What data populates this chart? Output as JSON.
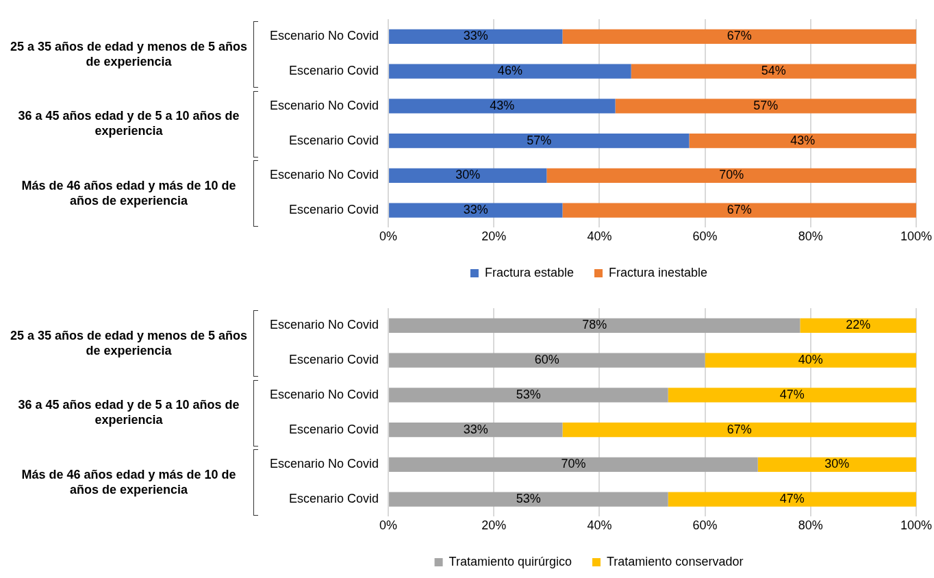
{
  "chart_data": [
    {
      "type": "bar",
      "orientation": "horizontal",
      "stacked": true,
      "categories": [
        "Escenario No Covid",
        "Escenario Covid",
        "Escenario No Covid",
        "Escenario Covid",
        "Escenario No Covid",
        "Escenario Covid"
      ],
      "annotations": [
        "25 a 35 años de edad y menos de 5 años de experiencia",
        "36 a 45 años edad y de 5 a 10 años de experiencia",
        "Más de 46 años edad y más de 10 de años de experiencia"
      ],
      "series": [
        {
          "name": "Fractura estable",
          "color": "#4472c4",
          "values": [
            33,
            46,
            43,
            57,
            30,
            33
          ],
          "value_labels": [
            "33%",
            "46%",
            "43%",
            "57%",
            "30%",
            "33%"
          ]
        },
        {
          "name": "Fractura inestable",
          "color": "#ed7d31",
          "values": [
            67,
            54,
            57,
            43,
            70,
            67
          ],
          "value_labels": [
            "67%",
            "54%",
            "57%",
            "43%",
            "70%",
            "67%"
          ]
        }
      ],
      "xlim": [
        0,
        100
      ],
      "xticks": [
        {
          "value": 0,
          "label": "0%"
        },
        {
          "value": 20,
          "label": "20%"
        },
        {
          "value": 40,
          "label": "40%"
        },
        {
          "value": 60,
          "label": "60%"
        },
        {
          "value": 80,
          "label": "80%"
        },
        {
          "value": 100,
          "label": "100%"
        }
      ],
      "grid": "x",
      "legend": "bottom"
    },
    {
      "type": "bar",
      "orientation": "horizontal",
      "stacked": true,
      "categories": [
        "Escenario No Covid",
        "Escenario Covid",
        "Escenario No Covid",
        "Escenario Covid",
        "Escenario No Covid",
        "Escenario Covid"
      ],
      "annotations": [
        "25 a 35 años de edad y menos de 5 años de experiencia",
        "36 a 45 años edad y de 5 a 10 años de experiencia",
        "Más de 46 años edad y más de 10 de años de experiencia"
      ],
      "series": [
        {
          "name": "Tratamiento quirúrgico",
          "color": "#a5a5a5",
          "values": [
            78,
            60,
            53,
            33,
            70,
            53
          ],
          "value_labels": [
            "78%",
            "60%",
            "53%",
            "33%",
            "70%",
            "53%"
          ]
        },
        {
          "name": "Tratamiento conservador",
          "color": "#ffc000",
          "values": [
            22,
            40,
            47,
            67,
            30,
            47
          ],
          "value_labels": [
            "22%",
            "40%",
            "47%",
            "67%",
            "30%",
            "47%"
          ]
        }
      ],
      "xlim": [
        0,
        100
      ],
      "xticks": [
        {
          "value": 0,
          "label": "0%"
        },
        {
          "value": 20,
          "label": "20%"
        },
        {
          "value": 40,
          "label": "40%"
        },
        {
          "value": 60,
          "label": "60%"
        },
        {
          "value": 80,
          "label": "80%"
        },
        {
          "value": 100,
          "label": "100%"
        }
      ],
      "grid": "x",
      "legend": "bottom"
    }
  ]
}
